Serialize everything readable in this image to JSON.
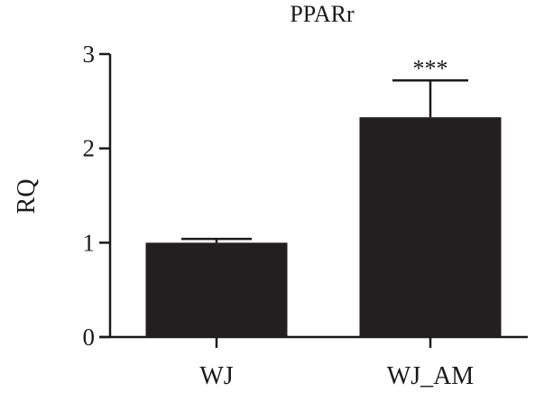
{
  "chart_data": {
    "type": "bar",
    "title": "PPARr",
    "xlabel": "",
    "ylabel": "RQ",
    "ylim": [
      0,
      3
    ],
    "yticks": [
      "0",
      "1",
      "2",
      "3"
    ],
    "categories": [
      "WJ",
      "WJ_AM"
    ],
    "values": [
      1.0,
      2.33
    ],
    "errors": [
      0.04,
      0.39
    ],
    "annotations": [
      "",
      "***"
    ],
    "grid": false,
    "legend": "none",
    "bar_color": "#231f20",
    "axis_color": "#1a1a1a"
  }
}
